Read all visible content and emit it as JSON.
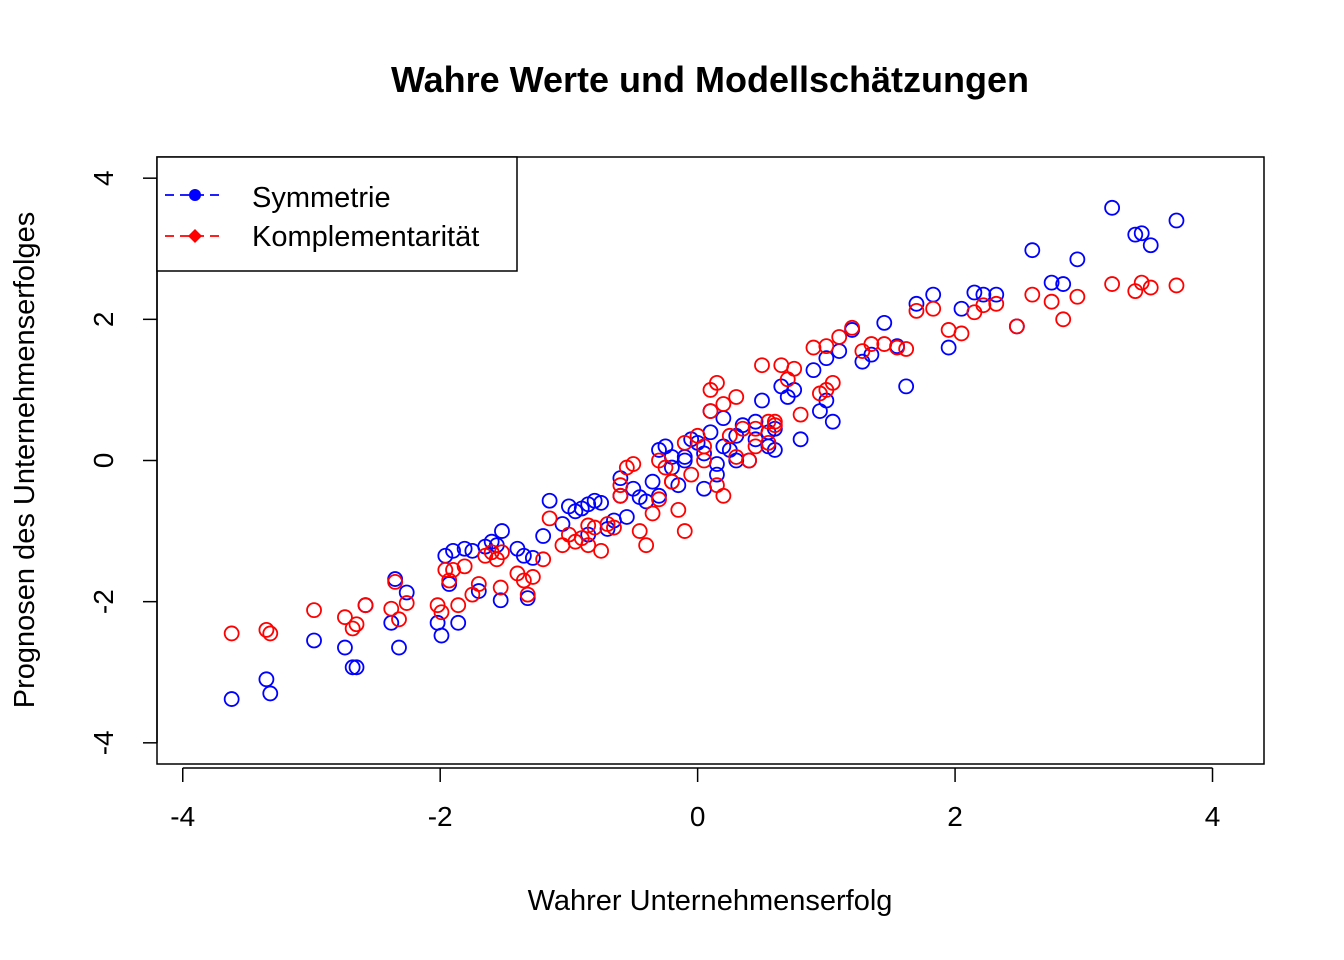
{
  "chart_data": {
    "type": "scatter",
    "title": "Wahre Werte und Modellschätzungen",
    "xlabel": "Wahrer Unternehmenserfolg",
    "ylabel": "Prognosen des Unternehmenserfolges",
    "xlim": [
      -4.2,
      4.4
    ],
    "ylim": [
      -4.3,
      4.3
    ],
    "xticks": [
      -4,
      -2,
      0,
      2,
      4
    ],
    "yticks": [
      -4,
      -2,
      0,
      2,
      4
    ],
    "xtick_labels": [
      "-4",
      "-2",
      "0",
      "2",
      "4"
    ],
    "ytick_labels": [
      "-4",
      "-2",
      "0",
      "2",
      "4"
    ],
    "legend_position": "top-left",
    "series": [
      {
        "name": "Symmetrie",
        "color": "#0000ff",
        "marker": "circle",
        "x": [
          -3.62,
          -3.35,
          -3.32,
          -2.98,
          -2.74,
          -2.68,
          -2.65,
          -2.58,
          -2.38,
          -2.35,
          -2.32,
          -2.26,
          -2.02,
          -1.99,
          -1.96,
          -1.93,
          -1.9,
          -1.86,
          -1.81,
          -1.75,
          -1.7,
          -1.65,
          -1.6,
          -1.56,
          -1.53,
          -1.52,
          -1.4,
          -1.35,
          -1.32,
          -1.28,
          -1.2,
          -1.15,
          -1.05,
          -1.0,
          -0.95,
          -0.9,
          -0.85,
          -0.8,
          -0.75,
          -0.7,
          -0.65,
          -0.6,
          -0.55,
          -0.5,
          -0.45,
          -0.4,
          -0.35,
          -0.3,
          -0.25,
          -0.2,
          -0.15,
          -0.1,
          -0.05,
          0.0,
          0.05,
          0.1,
          0.15,
          0.2,
          0.25,
          0.3,
          0.35,
          0.4,
          0.45,
          0.5,
          0.55,
          0.6,
          0.65,
          0.7,
          0.8,
          0.9,
          0.95,
          1.0,
          1.05,
          1.1,
          1.2,
          1.28,
          1.35,
          1.45,
          1.55,
          1.62,
          1.7,
          1.83,
          1.95,
          2.05,
          2.15,
          2.22,
          2.32,
          2.48,
          2.6,
          2.75,
          2.84,
          2.95,
          3.22,
          3.4,
          3.45,
          3.52,
          3.72,
          -0.1,
          0.3,
          0.6,
          0.15,
          -0.3,
          0.45,
          0.1,
          -0.6,
          0.75,
          1.0,
          -0.85,
          0.2,
          0.55,
          -0.2,
          0.05
        ],
        "y": [
          -3.38,
          -3.1,
          -3.3,
          -2.55,
          -2.65,
          -2.93,
          -2.93,
          -2.05,
          -2.3,
          -1.68,
          -2.65,
          -1.87,
          -2.3,
          -2.48,
          -1.35,
          -1.75,
          -1.28,
          -2.3,
          -1.25,
          -1.28,
          -1.85,
          -1.22,
          -1.15,
          -1.2,
          -1.98,
          -1.0,
          -1.25,
          -1.35,
          -1.95,
          -1.38,
          -1.07,
          -0.57,
          -0.9,
          -0.65,
          -0.72,
          -0.68,
          -0.62,
          -0.57,
          -0.6,
          -0.97,
          -0.85,
          -0.5,
          -0.8,
          -0.4,
          -0.52,
          -0.58,
          -0.3,
          -0.5,
          0.2,
          -0.1,
          -0.35,
          0.0,
          0.3,
          0.25,
          0.1,
          0.4,
          -0.05,
          0.6,
          0.15,
          0.35,
          0.5,
          0.0,
          0.3,
          0.85,
          0.2,
          0.45,
          1.05,
          0.9,
          0.3,
          1.28,
          0.7,
          1.45,
          0.55,
          1.55,
          1.85,
          1.4,
          1.5,
          1.95,
          1.62,
          1.05,
          2.22,
          2.35,
          1.6,
          2.15,
          2.38,
          2.35,
          2.35,
          1.9,
          2.98,
          2.52,
          2.5,
          2.85,
          3.58,
          3.2,
          3.22,
          3.05,
          3.4,
          0.05,
          0.0,
          0.15,
          -0.2,
          0.15,
          0.55,
          0.7,
          -0.25,
          1.0,
          0.85,
          -1.05,
          0.2,
          0.4,
          0.05,
          -0.4
        ]
      },
      {
        "name": "Komplementarität",
        "color": "#ff0000",
        "marker": "circle",
        "x": [
          -3.62,
          -3.35,
          -3.32,
          -2.98,
          -2.74,
          -2.68,
          -2.65,
          -2.58,
          -2.38,
          -2.35,
          -2.32,
          -2.26,
          -2.02,
          -1.99,
          -1.96,
          -1.93,
          -1.9,
          -1.86,
          -1.81,
          -1.75,
          -1.7,
          -1.65,
          -1.6,
          -1.56,
          -1.53,
          -1.52,
          -1.4,
          -1.35,
          -1.32,
          -1.28,
          -1.2,
          -1.15,
          -1.05,
          -1.0,
          -0.95,
          -0.9,
          -0.85,
          -0.8,
          -0.75,
          -0.7,
          -0.65,
          -0.6,
          -0.55,
          -0.5,
          -0.45,
          -0.4,
          -0.35,
          -0.3,
          -0.25,
          -0.2,
          -0.15,
          -0.1,
          -0.05,
          0.0,
          0.05,
          0.1,
          0.15,
          0.2,
          0.25,
          0.3,
          0.35,
          0.4,
          0.45,
          0.5,
          0.55,
          0.6,
          0.65,
          0.7,
          0.8,
          0.9,
          0.95,
          1.0,
          1.05,
          1.1,
          1.2,
          1.28,
          1.35,
          1.45,
          1.55,
          1.62,
          1.7,
          1.83,
          1.95,
          2.05,
          2.15,
          2.22,
          2.32,
          2.48,
          2.6,
          2.75,
          2.84,
          2.95,
          3.22,
          3.4,
          3.45,
          3.52,
          3.72,
          -0.1,
          0.3,
          0.6,
          0.15,
          -0.3,
          0.45,
          0.1,
          -0.6,
          0.75,
          1.0,
          -0.85,
          0.2,
          0.55,
          -0.2,
          0.05
        ],
        "y": [
          -2.45,
          -2.4,
          -2.45,
          -2.12,
          -2.22,
          -2.38,
          -2.32,
          -2.05,
          -2.1,
          -1.72,
          -2.25,
          -2.02,
          -2.05,
          -2.15,
          -1.55,
          -1.7,
          -1.55,
          -2.05,
          -1.5,
          -1.9,
          -1.75,
          -1.35,
          -1.3,
          -1.4,
          -1.8,
          -1.3,
          -1.6,
          -1.7,
          -1.9,
          -1.65,
          -1.4,
          -0.82,
          -1.2,
          -1.05,
          -1.15,
          -1.1,
          -0.92,
          -0.95,
          -1.28,
          -0.9,
          -0.95,
          -0.5,
          -0.1,
          -0.05,
          -1.0,
          -1.2,
          -0.75,
          -0.55,
          -0.1,
          -0.3,
          -0.7,
          -1.0,
          -0.2,
          0.35,
          0.2,
          0.7,
          1.1,
          0.8,
          0.35,
          0.9,
          0.45,
          0.0,
          0.2,
          1.35,
          0.25,
          0.55,
          1.35,
          1.15,
          0.65,
          1.6,
          0.95,
          1.62,
          1.1,
          1.75,
          1.88,
          1.55,
          1.65,
          1.65,
          1.6,
          1.58,
          2.12,
          2.15,
          1.85,
          1.8,
          2.1,
          2.2,
          2.22,
          1.9,
          2.35,
          2.25,
          2.0,
          2.32,
          2.5,
          2.4,
          2.52,
          2.45,
          2.48,
          0.25,
          0.05,
          0.5,
          -0.35,
          0.0,
          0.45,
          1.0,
          -0.35,
          1.3,
          1.0,
          -1.2,
          -0.5,
          0.55,
          -0.3,
          0.0
        ]
      }
    ]
  }
}
